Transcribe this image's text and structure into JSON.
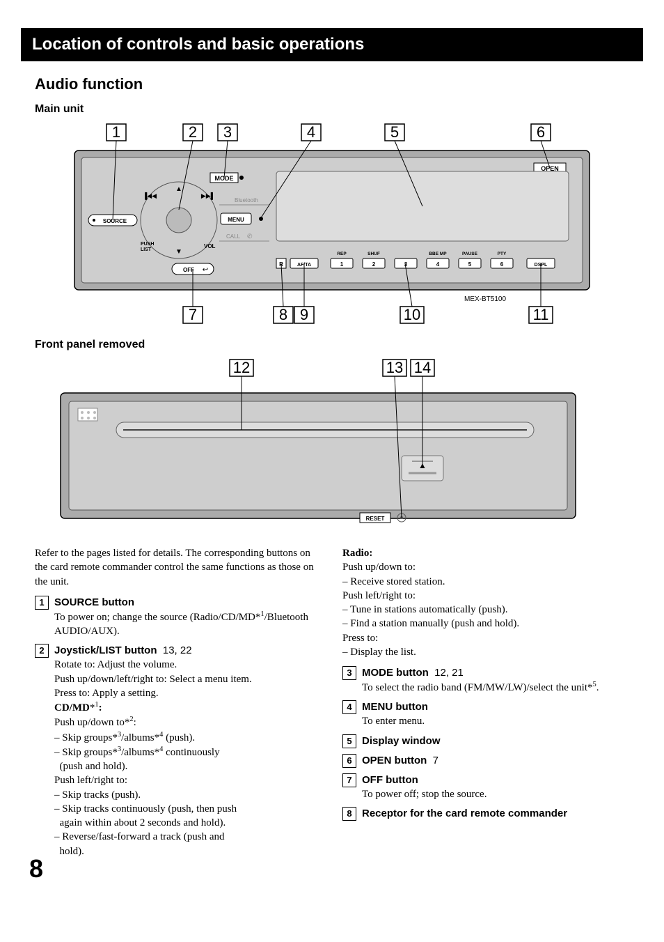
{
  "page_number": "8",
  "section_header": "Location of controls and basic operations",
  "h2": "Audio function",
  "main_unit": "Main unit",
  "front_panel": "Front panel removed",
  "model": "MEX-BT5100",
  "diagram1": {
    "callouts_top": [
      "1",
      "2",
      "3",
      "4",
      "5",
      "6"
    ],
    "callouts_bot": [
      "7",
      "8",
      "9",
      "10",
      "11"
    ],
    "labels": {
      "open": "OPEN",
      "mode": "MODE",
      "bluetooth": "Bluetooth",
      "source": "SOURCE",
      "menu": "MENU",
      "call": "CALL",
      "push_list": "PUSH\nLIST",
      "vol": "VOL",
      "off": "OFF",
      "r": "R",
      "afta": "AF/TA",
      "rep": "REP",
      "shuf": "SHUF",
      "bbemp": "BBE MP",
      "pause": "PAUSE",
      "pty": "PTY",
      "nums": [
        "1",
        "2",
        "3",
        "4",
        "5",
        "6"
      ],
      "dspl": "DSPL"
    }
  },
  "diagram2": {
    "callouts": [
      "12",
      "13",
      "14"
    ],
    "reset": "RESET"
  },
  "intro": "Refer to the pages listed for details. The corresponding buttons on the card remote commander control the same functions as those on the unit.",
  "left_col": [
    {
      "num": "1",
      "title": "SOURCE button",
      "body_html": "To power on; change the source (Radio/CD/MD*<sup>1</sup>/Bluetooth AUDIO/AUX)."
    },
    {
      "num": "2",
      "title": "Joystick/LIST button",
      "pages": "13, 22",
      "body_html": "Rotate to: Adjust the volume.<br>Push up/down/left/right to: Select a menu item.<br>Press to: Apply a setting.<br><span class='serif-bold'>CD/MD</span>*<sup>1</sup><span class='serif-bold'>:</span><br>Push up/down to*<sup>2</sup>:<br>– Skip groups*<sup>3</sup>/albums*<sup>4</sup> (push).<br>– Skip groups*<sup>3</sup>/albums*<sup>4</sup> continuously<br>&nbsp;&nbsp;(push and hold).<br>Push left/right to:<br>– Skip tracks (push).<br>– Skip tracks continuously (push, then push<br>&nbsp;&nbsp;again within about 2 seconds and hold).<br>– Reverse/fast-forward a track (push and<br>&nbsp;&nbsp;hold)."
    }
  ],
  "right_col_lead": "<span class='serif-bold'>Radio:</span><br>Push up/down to:<br>– Receive stored station.<br>Push left/right to:<br>– Tune in stations automatically (push).<br>– Find a station manually (push and hold).<br>Press to:<br>– Display the list.",
  "right_col": [
    {
      "num": "3",
      "title": "MODE button",
      "pages": "12, 21",
      "body_html": "To select the radio band (FM/MW/LW)/select the unit*<sup>5</sup>."
    },
    {
      "num": "4",
      "title": "MENU button",
      "body_html": "To enter menu."
    },
    {
      "num": "5",
      "title": "Display window"
    },
    {
      "num": "6",
      "title": "OPEN button",
      "pages": "7"
    },
    {
      "num": "7",
      "title": "OFF button",
      "body_html": "To power off; stop the source."
    },
    {
      "num": "8",
      "title": "Receptor for the card remote commander"
    }
  ],
  "style": {
    "callout_font_size": 22,
    "callout_stroke": "#000",
    "body_bg": "#ababab",
    "panel_bg": "#cecece",
    "line_color": "#000"
  }
}
